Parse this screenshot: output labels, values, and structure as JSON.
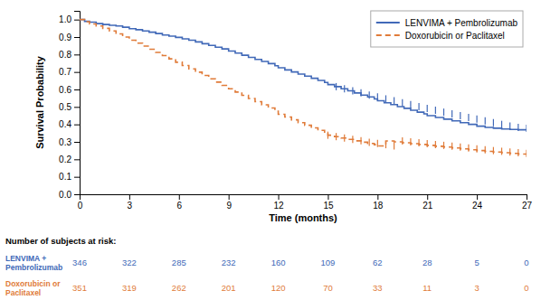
{
  "chart_data": {
    "type": "step",
    "xlabel": "Time (months)",
    "ylabel": "Survival Probability",
    "xlim": [
      0,
      27
    ],
    "ylim": [
      0.0,
      1.05
    ],
    "xticks": [
      0,
      3,
      6,
      9,
      12,
      15,
      18,
      21,
      24,
      27
    ],
    "yticks": [
      {
        "value": 0.0,
        "label": "0.0"
      },
      0.1,
      0.2,
      0.3,
      0.4,
      0.5,
      0.6,
      0.7,
      0.8,
      0.9,
      {
        "value": 1.0,
        "label": "1.0"
      }
    ],
    "grid": false,
    "legend": "upper right",
    "at_risk_label": "Number of subjects at risk:",
    "at_risk_times": [
      0,
      3,
      6,
      9,
      12,
      15,
      18,
      21,
      24,
      27
    ],
    "series": [
      {
        "name": "LENVIMA + Pembrolizumab",
        "color": "#4169b8",
        "line_style": "solid",
        "at_risk_label": [
          "LENVIMA +",
          "Pembrolizumab"
        ],
        "at_risk": [
          346,
          322,
          285,
          232,
          160,
          109,
          62,
          28,
          5,
          0
        ],
        "x": [
          0,
          0.3,
          0.6,
          1.0,
          1.4,
          1.8,
          2.2,
          2.6,
          3.0,
          3.4,
          3.8,
          4.2,
          4.6,
          5.0,
          5.4,
          5.8,
          6.2,
          6.6,
          7.0,
          7.4,
          7.8,
          8.2,
          8.6,
          9.0,
          9.4,
          9.8,
          10.2,
          10.6,
          11.0,
          11.4,
          11.8,
          12.0,
          12.4,
          12.8,
          13.2,
          13.6,
          14.0,
          14.4,
          14.8,
          15.0,
          15.4,
          15.8,
          16.2,
          16.6,
          17.0,
          17.4,
          17.8,
          18.0,
          18.4,
          18.8,
          19.2,
          19.6,
          20.0,
          20.4,
          20.8,
          21.0,
          21.5,
          22.0,
          22.5,
          23.0,
          23.5,
          24.0,
          24.5,
          25.0,
          25.5,
          26.0,
          26.5,
          27.0
        ],
        "values": [
          1.0,
          0.99,
          0.985,
          0.977,
          0.972,
          0.967,
          0.963,
          0.956,
          0.948,
          0.942,
          0.935,
          0.928,
          0.92,
          0.912,
          0.905,
          0.898,
          0.89,
          0.882,
          0.872,
          0.862,
          0.852,
          0.842,
          0.832,
          0.82,
          0.808,
          0.796,
          0.784,
          0.772,
          0.76,
          0.748,
          0.736,
          0.724,
          0.712,
          0.7,
          0.688,
          0.676,
          0.664,
          0.652,
          0.64,
          0.628,
          0.616,
          0.604,
          0.592,
          0.58,
          0.568,
          0.557,
          0.546,
          0.535,
          0.524,
          0.513,
          0.502,
          0.492,
          0.481,
          0.47,
          0.46,
          0.45,
          0.44,
          0.43,
          0.42,
          0.41,
          0.4,
          0.39,
          0.383,
          0.378,
          0.374,
          0.371,
          0.369,
          0.367
        ],
        "censored_x": [
          15.5,
          16.0,
          16.5,
          17.0,
          17.5,
          18.0,
          18.5,
          19.0,
          19.5,
          20.0,
          20.5,
          21.0,
          21.5,
          22.0,
          22.5,
          23.0,
          23.5,
          24.0,
          24.5,
          25.0,
          25.5,
          26.0,
          26.5,
          27.0
        ],
        "censored_values": [
          0.616,
          0.604,
          0.592,
          0.58,
          0.568,
          0.557,
          0.546,
          0.535,
          0.524,
          0.513,
          0.502,
          0.492,
          0.481,
          0.47,
          0.46,
          0.45,
          0.44,
          0.43,
          0.42,
          0.41,
          0.4,
          0.39,
          0.383,
          0.378
        ]
      },
      {
        "name": "Doxorubicin or Paclitaxel",
        "color": "#E07B39",
        "line_style": "dashed",
        "at_risk_label": [
          "Doxorubicin or",
          "Paclitaxel"
        ],
        "at_risk": [
          351,
          319,
          262,
          201,
          120,
          70,
          33,
          11,
          3,
          0
        ],
        "x": [
          0,
          0.3,
          0.6,
          1.0,
          1.4,
          1.8,
          2.2,
          2.6,
          3.0,
          3.4,
          3.8,
          4.2,
          4.6,
          5.0,
          5.4,
          5.8,
          6.2,
          6.6,
          7.0,
          7.4,
          7.8,
          8.2,
          8.6,
          9.0,
          9.4,
          9.8,
          10.2,
          10.6,
          11.0,
          11.4,
          11.8,
          12.0,
          12.4,
          12.8,
          13.2,
          13.6,
          14.0,
          14.4,
          14.8,
          15.0,
          15.4,
          15.8,
          16.2,
          16.6,
          17.0,
          17.4,
          17.8,
          18.0,
          18.5,
          19.0,
          19.5,
          20.0,
          20.5,
          21.0,
          21.5,
          22.0,
          22.5,
          23.0,
          23.5,
          24.0,
          24.5,
          25.0,
          25.5,
          26.0,
          26.5,
          27.0
        ],
        "values": [
          1.0,
          0.988,
          0.975,
          0.963,
          0.95,
          0.935,
          0.918,
          0.9,
          0.882,
          0.865,
          0.848,
          0.83,
          0.812,
          0.794,
          0.775,
          0.756,
          0.737,
          0.718,
          0.699,
          0.68,
          0.661,
          0.642,
          0.623,
          0.604,
          0.585,
          0.566,
          0.548,
          0.53,
          0.512,
          0.494,
          0.476,
          0.458,
          0.442,
          0.426,
          0.41,
          0.395,
          0.38,
          0.366,
          0.352,
          0.338,
          0.33,
          0.322,
          0.314,
          0.306,
          0.298,
          0.291,
          0.284,
          0.277,
          0.305,
          0.3,
          0.295,
          0.29,
          0.285,
          0.28,
          0.275,
          0.27,
          0.265,
          0.26,
          0.255,
          0.25,
          0.246,
          0.242,
          0.238,
          0.234,
          0.23,
          0.226
        ],
        "censored_x": [
          15.0,
          15.5,
          16.0,
          16.5,
          17.0,
          17.5,
          18.0,
          18.5,
          19.0,
          19.5,
          20.0,
          20.5,
          21.0,
          21.5,
          22.0,
          22.5,
          23.0,
          23.5,
          24.0,
          24.5,
          25.0,
          25.5,
          26.0,
          26.5,
          27.0
        ],
        "censored_values": [
          0.338,
          0.33,
          0.322,
          0.314,
          0.306,
          0.298,
          0.291,
          0.284,
          0.277,
          0.305,
          0.3,
          0.295,
          0.29,
          0.285,
          0.28,
          0.275,
          0.27,
          0.265,
          0.26,
          0.255,
          0.25,
          0.246,
          0.242,
          0.238,
          0.234
        ]
      }
    ]
  }
}
